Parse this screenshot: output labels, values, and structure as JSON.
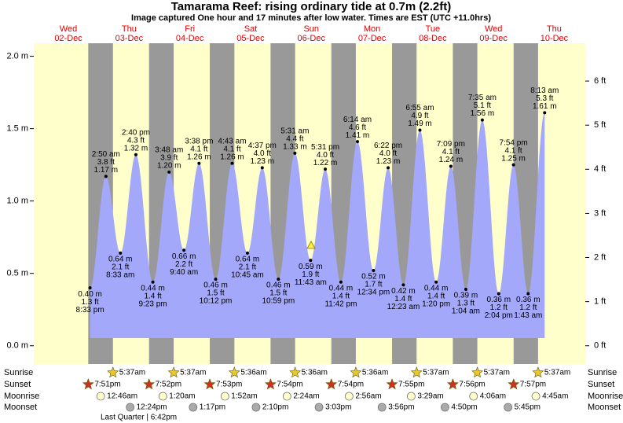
{
  "header": {
    "title": "Tamarama Reef: rising  ordinary tide at 0.7m (2.2ft)",
    "subtitle": "Image captured One hour and 17 minutes after low water. Times are EST (UTC +11.0hrs)"
  },
  "chart_data": {
    "type": "tide",
    "ylim": [
      -0.11,
      2.09
    ],
    "yticks": [
      {
        "value": 0,
        "label": "0.0 m"
      },
      {
        "value": 0.5,
        "label": "0.5 m"
      },
      {
        "value": 1,
        "label": "1.0 m"
      },
      {
        "value": 1.5,
        "label": "1.5 m"
      },
      {
        "value": 2,
        "label": "2.0 m"
      }
    ],
    "y2lim": [
      -0.361,
      6.857
    ],
    "y2ticks": [
      {
        "value": 0,
        "label": "0 ft"
      },
      {
        "value": 1,
        "label": "1 ft"
      },
      {
        "value": 2,
        "label": "2 ft"
      },
      {
        "value": 3,
        "label": "3 ft"
      },
      {
        "value": 4,
        "label": "4 ft"
      },
      {
        "value": 5,
        "label": "5 ft"
      },
      {
        "value": 6,
        "label": "6 ft"
      }
    ],
    "color": "#a3a8fb",
    "row_labels": [
      "Sunrise",
      "Sunset",
      "Moonrise",
      "Moonset"
    ],
    "moon_phase": "Last Quarter | 6:42pm",
    "days": [
      {
        "dow": "Wed",
        "date": "02-Dec",
        "sunset": "7:51pm",
        "tides": [
          {
            "time": "8:33 pm",
            "m": 0.4,
            "m_label": "0.40 m",
            "ft_label": "1.3 ft"
          }
        ]
      },
      {
        "dow": "Thu",
        "date": "03-Dec",
        "sunrise": "5:37am",
        "sunset": "7:52pm",
        "moonrise": "12:46am",
        "moonset": "12:24pm",
        "tides": [
          {
            "time": "2:50 am",
            "m": 1.17,
            "m_label": "1.17 m",
            "ft_label": "3.8 ft"
          },
          {
            "time": "8:33 am",
            "m": 0.64,
            "m_label": "0.64 m",
            "ft_label": "2.1 ft"
          },
          {
            "time": "2:40 pm",
            "m": 1.32,
            "m_label": "1.32 m",
            "ft_label": "4.3 ft"
          },
          {
            "time": "9:23 pm",
            "m": 0.44,
            "m_label": "0.44 m",
            "ft_label": "1.4 ft"
          }
        ]
      },
      {
        "dow": "Fri",
        "date": "04-Dec",
        "sunrise": "5:37am",
        "sunset": "7:53pm",
        "moonrise": "1:20am",
        "moonset": "1:17pm",
        "tides": [
          {
            "time": "3:48 am",
            "m": 1.2,
            "m_label": "1.20 m",
            "ft_label": "3.9 ft"
          },
          {
            "time": "9:40 am",
            "m": 0.66,
            "m_label": "0.66 m",
            "ft_label": "2.2 ft"
          },
          {
            "time": "3:38 pm",
            "m": 1.26,
            "m_label": "1.26 m",
            "ft_label": "4.1 ft"
          },
          {
            "time": "10:12 pm",
            "m": 0.46,
            "m_label": "0.46 m",
            "ft_label": "1.5 ft"
          }
        ]
      },
      {
        "dow": "Sat",
        "date": "05-Dec",
        "sunrise": "5:36am",
        "sunset": "7:54pm",
        "moonrise": "1:52am",
        "moonset": "2:10pm",
        "tides": [
          {
            "time": "4:43 am",
            "m": 1.26,
            "m_label": "1.26 m",
            "ft_label": "4.1 ft"
          },
          {
            "time": "10:45 am",
            "m": 0.64,
            "m_label": "0.64 m",
            "ft_label": "2.1 ft"
          },
          {
            "time": "4:37 pm",
            "m": 1.23,
            "m_label": "1.23 m",
            "ft_label": "4.0 ft"
          },
          {
            "time": "10:59 pm",
            "m": 0.46,
            "m_label": "0.46 m",
            "ft_label": "1.5 ft"
          }
        ]
      },
      {
        "dow": "Sun",
        "date": "06-Dec",
        "sunrise": "5:36am",
        "sunset": "7:54pm",
        "moonrise": "2:24am",
        "moonset": "3:03pm",
        "tides": [
          {
            "time": "5:31 am",
            "m": 1.33,
            "m_label": "1.33 m",
            "ft_label": "4.4 ft"
          },
          {
            "time": "11:43 am",
            "m": 0.59,
            "m_label": "0.59 m",
            "ft_label": "1.9 ft"
          },
          {
            "time": "5:31 pm",
            "m": 1.22,
            "m_label": "1.22 m",
            "ft_label": "4.0 ft"
          },
          {
            "time": "11:42 pm",
            "m": 0.44,
            "m_label": "0.44 m",
            "ft_label": "1.4 ft"
          }
        ]
      },
      {
        "dow": "Mon",
        "date": "07-Dec",
        "sunrise": "5:36am",
        "sunset": "7:55pm",
        "moonrise": "2:56am",
        "moonset": "3:56pm",
        "tides": [
          {
            "time": "6:14 am",
            "m": 1.41,
            "m_label": "1.41 m",
            "ft_label": "4.6 ft"
          },
          {
            "time": "12:34 pm",
            "m": 0.52,
            "m_label": "0.52 m",
            "ft_label": "1.7 ft"
          },
          {
            "time": "6:22 pm",
            "m": 1.23,
            "m_label": "1.23 m",
            "ft_label": "4.0 ft"
          }
        ]
      },
      {
        "dow": "Tue",
        "date": "08-Dec",
        "sunrise": "5:37am",
        "sunset": "7:56pm",
        "moonrise": "3:29am",
        "moonset": "4:50pm",
        "tides": [
          {
            "time": "12:23 am",
            "m": 0.42,
            "m_label": "0.42 m",
            "ft_label": "1.4 ft"
          },
          {
            "time": "6:55 am",
            "m": 1.49,
            "m_label": "1.49 m",
            "ft_label": "4.9 ft"
          },
          {
            "time": "1:20 pm",
            "m": 0.44,
            "m_label": "0.44 m",
            "ft_label": "1.4 ft"
          },
          {
            "time": "7:09 pm",
            "m": 1.24,
            "m_label": "1.24 m",
            "ft_label": "4.1 ft"
          }
        ]
      },
      {
        "dow": "Wed",
        "date": "09-Dec",
        "sunrise": "5:37am",
        "sunset": "7:57pm",
        "moonrise": "4:06am",
        "moonset": "5:45pm",
        "tides": [
          {
            "time": "1:04 am",
            "m": 0.39,
            "m_label": "0.39 m",
            "ft_label": "1.3 ft"
          },
          {
            "time": "7:35 am",
            "m": 1.56,
            "m_label": "1.56 m",
            "ft_label": "5.1 ft"
          },
          {
            "time": "2:04 pm",
            "m": 0.36,
            "m_label": "0.36 m",
            "ft_label": "1.2 ft"
          },
          {
            "time": "7:54 pm",
            "m": 1.25,
            "m_label": "1.25 m",
            "ft_label": "4.1 ft"
          }
        ]
      },
      {
        "dow": "Thu",
        "date": "10-Dec",
        "sunrise": "5:37am",
        "moonrise": "4:45am",
        "tides": [
          {
            "time": "1:43 am",
            "m": 0.36,
            "m_label": "0.36 m",
            "ft_label": "1.2 ft"
          },
          {
            "time": "8:13 am",
            "m": 1.61,
            "m_label": "1.61 m",
            "ft_label": "5.3 ft"
          }
        ]
      }
    ]
  }
}
